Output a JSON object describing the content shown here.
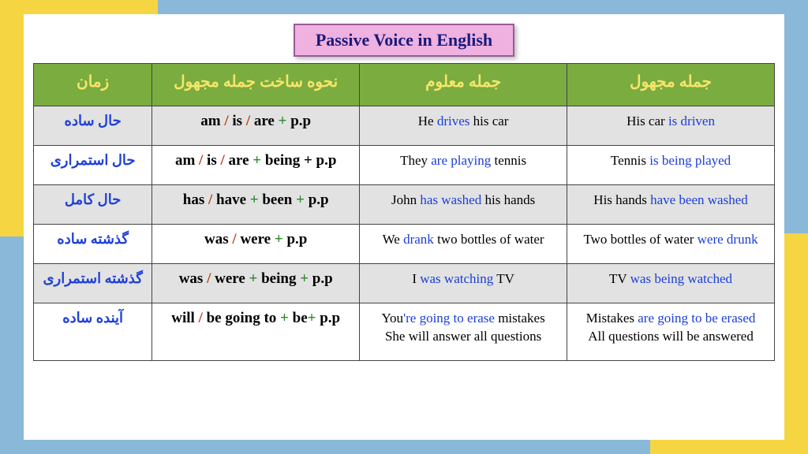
{
  "title": "Passive Voice in English",
  "colors": {
    "outer_bg": "#8ab8d8",
    "accent": "#f5d642",
    "page_bg": "#ffffff",
    "title_bg": "#efb1e0",
    "title_border": "#9a5a99",
    "title_text": "#1a1a7a",
    "header_bg": "#7aac3f",
    "header_text": "#f8e46a",
    "shaded_row": "#e2e2e2",
    "plain_row": "#ffffff",
    "tense_text": "#2040d8",
    "separator": "#b93a0e",
    "plus": "#2a8a2a",
    "highlight": "#1a3ed8",
    "border": "#444444"
  },
  "headers": {
    "c1": "زمان",
    "c2": "نحوه ساخت جمله مجهول",
    "c3": "جمله معلوم",
    "c4": "جمله مجهول"
  },
  "rows": [
    {
      "shaded": true,
      "tense": "حال ساده",
      "formula": [
        {
          "t": "am ",
          "c": "n"
        },
        {
          "t": "/ ",
          "c": "s"
        },
        {
          "t": "is ",
          "c": "n"
        },
        {
          "t": "/ ",
          "c": "s"
        },
        {
          "t": "are ",
          "c": "n"
        },
        {
          "t": "+ ",
          "c": "p"
        },
        {
          "t": "p.p",
          "c": "n"
        }
      ],
      "active": [
        [
          {
            "t": "He ",
            "c": "n"
          },
          {
            "t": "drives ",
            "c": "h"
          },
          {
            "t": "his car",
            "c": "n"
          }
        ]
      ],
      "passive": [
        [
          {
            "t": "His car ",
            "c": "n"
          },
          {
            "t": "is driven",
            "c": "h"
          }
        ]
      ]
    },
    {
      "shaded": false,
      "tense": "حال استمراری",
      "formula": [
        {
          "t": "am ",
          "c": "n"
        },
        {
          "t": "/ ",
          "c": "s"
        },
        {
          "t": "is ",
          "c": "n"
        },
        {
          "t": "/ ",
          "c": "s"
        },
        {
          "t": "are ",
          "c": "n"
        },
        {
          "t": "+ ",
          "c": "p"
        },
        {
          "t": "being + p.p",
          "c": "n"
        }
      ],
      "active": [
        [
          {
            "t": "They ",
            "c": "n"
          },
          {
            "t": "are playing ",
            "c": "h"
          },
          {
            "t": "tennis",
            "c": "n"
          }
        ]
      ],
      "passive": [
        [
          {
            "t": "Tennis ",
            "c": "n"
          },
          {
            "t": "is being played",
            "c": "h"
          }
        ]
      ]
    },
    {
      "shaded": true,
      "tense": "حال کامل",
      "formula": [
        {
          "t": "has ",
          "c": "n"
        },
        {
          "t": "/ ",
          "c": "s"
        },
        {
          "t": "have ",
          "c": "n"
        },
        {
          "t": "+ ",
          "c": "p"
        },
        {
          "t": "been ",
          "c": "n"
        },
        {
          "t": "+ ",
          "c": "p"
        },
        {
          "t": "p.p",
          "c": "n"
        }
      ],
      "active": [
        [
          {
            "t": "John ",
            "c": "n"
          },
          {
            "t": "has washed ",
            "c": "h"
          },
          {
            "t": "his hands",
            "c": "n"
          }
        ]
      ],
      "passive": [
        [
          {
            "t": "His hands ",
            "c": "n"
          },
          {
            "t": "have been washed",
            "c": "h"
          }
        ]
      ]
    },
    {
      "shaded": false,
      "tense": "گذشته ساده",
      "formula": [
        {
          "t": "was ",
          "c": "n"
        },
        {
          "t": "/ ",
          "c": "s"
        },
        {
          "t": "were ",
          "c": "n"
        },
        {
          "t": "+ ",
          "c": "p"
        },
        {
          "t": "p.p",
          "c": "n"
        }
      ],
      "active": [
        [
          {
            "t": "We ",
            "c": "n"
          },
          {
            "t": "drank ",
            "c": "h"
          },
          {
            "t": "two bottles of water",
            "c": "n"
          }
        ]
      ],
      "passive": [
        [
          {
            "t": "Two bottles of water ",
            "c": "n"
          },
          {
            "t": "were drunk",
            "c": "h"
          }
        ]
      ]
    },
    {
      "shaded": true,
      "tense": "گذشته استمراری",
      "formula": [
        {
          "t": "was ",
          "c": "n"
        },
        {
          "t": "/ ",
          "c": "s"
        },
        {
          "t": "were ",
          "c": "n"
        },
        {
          "t": "+ ",
          "c": "p"
        },
        {
          "t": "being ",
          "c": "n"
        },
        {
          "t": "+ ",
          "c": "p"
        },
        {
          "t": "p.p",
          "c": "n"
        }
      ],
      "active": [
        [
          {
            "t": "I ",
            "c": "n"
          },
          {
            "t": "was watching ",
            "c": "h"
          },
          {
            "t": "TV",
            "c": "n"
          }
        ]
      ],
      "passive": [
        [
          {
            "t": "TV ",
            "c": "n"
          },
          {
            "t": "was being watched",
            "c": "h"
          }
        ]
      ]
    },
    {
      "shaded": false,
      "tense": "آینده ساده",
      "formula": [
        {
          "t": "will ",
          "c": "n"
        },
        {
          "t": "/ ",
          "c": "s"
        },
        {
          "t": "be going to ",
          "c": "n"
        },
        {
          "t": "+ ",
          "c": "p"
        },
        {
          "t": "be",
          "c": "n"
        },
        {
          "t": "+ ",
          "c": "p"
        },
        {
          "t": "p.p",
          "c": "n"
        }
      ],
      "active": [
        [
          {
            "t": "You",
            "c": "n"
          },
          {
            "t": "'re going to erase ",
            "c": "h"
          },
          {
            "t": "mistakes",
            "c": "n"
          }
        ],
        [
          {
            "t": "She will answer all questions",
            "c": "n"
          }
        ]
      ],
      "passive": [
        [
          {
            "t": "Mistakes ",
            "c": "n"
          },
          {
            "t": "are going to be erased",
            "c": "h"
          }
        ],
        [
          {
            "t": "All questions will be answered",
            "c": "n"
          }
        ]
      ]
    }
  ]
}
